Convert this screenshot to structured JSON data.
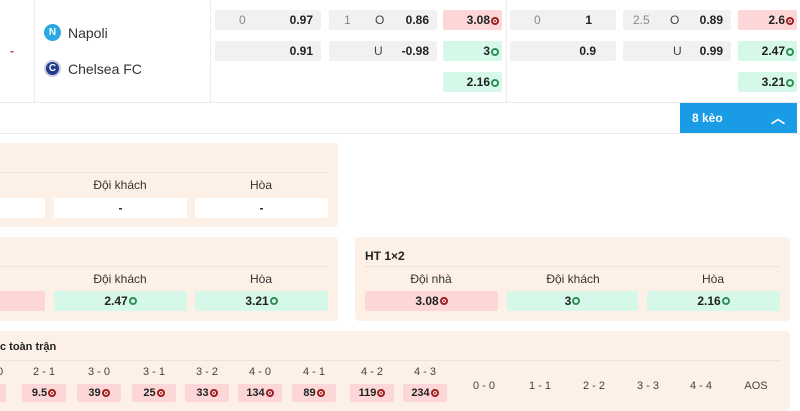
{
  "match": {
    "score": "-",
    "home": "Napoli",
    "away": "Chelsea FC"
  },
  "odds": {
    "ft_hdp": {
      "line": "0",
      "home": "0.97",
      "away": "0.91"
    },
    "ft_ou": {
      "line": "1",
      "over_label": "O",
      "over": "0.86",
      "under_label": "U",
      "under": "-0.98"
    },
    "ft_1x2": {
      "home": "3.08",
      "away": "3",
      "draw": "2.16"
    },
    "h2_hdp": {
      "line": "0",
      "home": "1",
      "away": "0.9"
    },
    "h2_ou": {
      "line": "2.5",
      "over_label": "O",
      "over": "0.89",
      "under_label": "U",
      "under": "0.99"
    },
    "h2_1x2": {
      "home": "2.6",
      "away": "2.47",
      "draw": "3.21"
    }
  },
  "more_button": {
    "label": "8 kèo",
    "icon": "chevron-up-icon",
    "color": "#1a9be6"
  },
  "panel1": {
    "away_label": "Đội khách",
    "draw_label": "Hòa",
    "away": "-",
    "draw": "-"
  },
  "panel2": {
    "away_label": "Đội khách",
    "draw_label": "Hòa",
    "away": "2.47",
    "draw": "3.21"
  },
  "ht_1x2": {
    "title": "HT 1×2",
    "home_label": "Đội nhà",
    "away_label": "Đội khách",
    "draw_label": "Hòa",
    "home": "3.08",
    "away": "3",
    "draw": "2.16"
  },
  "correct_score": {
    "title": "c toàn trận",
    "first_label": "0",
    "scores": [
      {
        "label": "2 - 1",
        "value": "9.5"
      },
      {
        "label": "3 - 0",
        "value": "39"
      },
      {
        "label": "3 - 1",
        "value": "25"
      },
      {
        "label": "3 - 2",
        "value": "33"
      },
      {
        "label": "4 - 0",
        "value": "134"
      },
      {
        "label": "4 - 1",
        "value": "89"
      },
      {
        "label": "4 - 2",
        "value": "119"
      },
      {
        "label": "4 - 3",
        "value": "234"
      }
    ],
    "draws": [
      "0 - 0",
      "1 - 1",
      "2 - 2",
      "3 - 3",
      "4 - 4",
      "AOS"
    ]
  },
  "colors": {
    "down": "#a21d1d",
    "up": "#2f8f5b",
    "red_bg": "#fdd7d7",
    "green_bg": "#d6f8e8",
    "panel_bg": "#fdf0e6"
  }
}
